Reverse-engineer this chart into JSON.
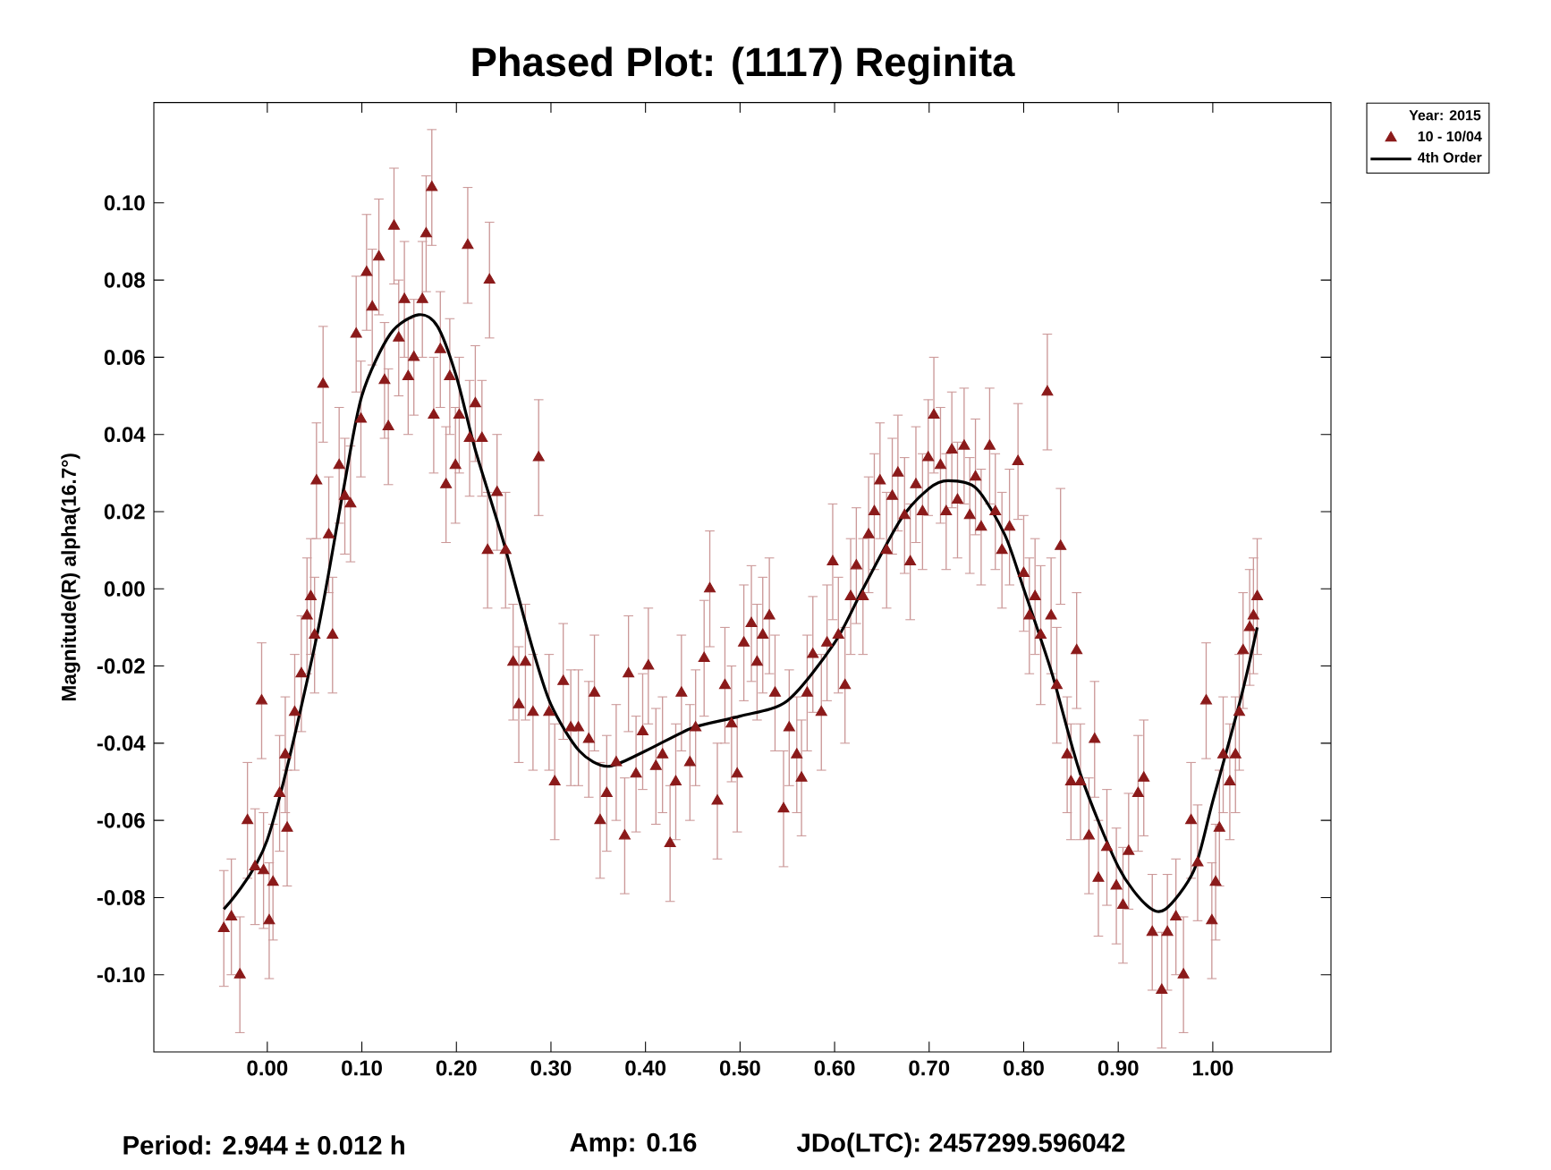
{
  "chart_data": {
    "type": "scatter",
    "title": "Phased Plot: (1117) Reginita",
    "ylabel": "Magnitude(R) alpha(16.7°)",
    "legend_title": "Year: 2015",
    "legend": "top right",
    "marker": "triangle",
    "grid": false,
    "xlim": [
      -0.12,
      1.125
    ],
    "ylim": [
      -0.12,
      0.126
    ],
    "xticks": [
      {
        "value": 0,
        "label": "0.00"
      },
      {
        "value": 0.1,
        "label": "0.10"
      },
      {
        "value": 0.2,
        "label": "0.20"
      },
      {
        "value": 0.3,
        "label": "0.30"
      },
      {
        "value": 0.4,
        "label": "0.40"
      },
      {
        "value": 0.5,
        "label": "0.50"
      },
      {
        "value": 0.6,
        "label": "0.60"
      },
      {
        "value": 0.7,
        "label": "0.70"
      },
      {
        "value": 0.8,
        "label": "0.80"
      },
      {
        "value": 0.9,
        "label": "0.90"
      },
      {
        "value": 1.0,
        "label": "1.00"
      }
    ],
    "yticks": [
      {
        "value": -0.1,
        "label": "-0.10"
      },
      {
        "value": -0.08,
        "label": "-0.08"
      },
      {
        "value": -0.06,
        "label": "-0.06"
      },
      {
        "value": -0.04,
        "label": "-0.04"
      },
      {
        "value": -0.02,
        "label": "-0.02"
      },
      {
        "value": 0,
        "label": "0.00"
      },
      {
        "value": 0.02,
        "label": "0.02"
      },
      {
        "value": 0.04,
        "label": "0.04"
      },
      {
        "value": 0.06,
        "label": "0.06"
      },
      {
        "value": 0.08,
        "label": "0.08"
      },
      {
        "value": 0.1,
        "label": "0.10"
      }
    ],
    "annotations": [
      "Period: 2.944 ± 0.012 h",
      "Amp: 0.16",
      "JDo(LTC): 2457299.596042"
    ],
    "series": [
      {
        "name": "10 - 10/04",
        "type": "scatter",
        "color": "#8b1a1a",
        "x": [
          -0.046,
          -0.038,
          -0.029,
          -0.021,
          -0.013,
          -0.006,
          -0.004,
          0.002,
          0.006,
          0.013,
          0.019,
          0.021,
          0.029,
          0.036,
          0.042,
          0.046,
          0.05,
          0.052,
          0.059,
          0.065,
          0.069,
          0.076,
          0.082,
          0.088,
          0.094,
          0.099,
          0.105,
          0.111,
          0.118,
          0.124,
          0.128,
          0.134,
          0.139,
          0.145,
          0.149,
          0.155,
          0.164,
          0.168,
          0.174,
          0.176,
          0.183,
          0.189,
          0.193,
          0.199,
          0.203,
          0.212,
          0.214,
          0.22,
          0.227,
          0.235,
          0.233,
          0.243,
          0.252,
          0.26,
          0.266,
          0.273,
          0.281,
          0.287,
          0.298,
          0.304,
          0.313,
          0.321,
          0.329,
          0.34,
          0.346,
          0.352,
          0.359,
          0.369,
          0.378,
          0.382,
          0.39,
          0.397,
          0.403,
          0.411,
          0.418,
          0.426,
          0.432,
          0.438,
          0.447,
          0.453,
          0.462,
          0.468,
          0.476,
          0.484,
          0.491,
          0.497,
          0.504,
          0.512,
          0.518,
          0.524,
          0.531,
          0.537,
          0.546,
          0.552,
          0.56,
          0.565,
          0.571,
          0.577,
          0.586,
          0.592,
          0.598,
          0.604,
          0.611,
          0.617,
          0.623,
          0.63,
          0.636,
          0.642,
          0.648,
          0.655,
          0.661,
          0.667,
          0.674,
          0.68,
          0.686,
          0.693,
          0.699,
          0.705,
          0.712,
          0.718,
          0.724,
          0.73,
          0.737,
          0.743,
          0.749,
          0.755,
          0.764,
          0.77,
          0.777,
          0.785,
          0.794,
          0.8,
          0.806,
          0.812,
          0.818,
          0.825,
          0.829,
          0.835,
          0.839,
          0.846,
          0.85,
          0.856,
          0.86,
          0.869,
          0.875,
          0.879,
          0.888,
          0.898,
          0.905,
          0.911,
          0.921,
          0.927,
          0.936,
          0.946,
          0.952,
          0.961,
          0.969,
          0.977,
          0.984,
          0.993,
          0.999,
          1.003,
          1.007,
          1.011,
          1.018,
          1.024,
          1.028,
          1.032,
          1.039,
          1.043,
          1.047
        ],
        "values": [
          -0.088,
          -0.085,
          -0.1,
          -0.06,
          -0.072,
          -0.029,
          -0.073,
          -0.086,
          -0.076,
          -0.053,
          -0.043,
          -0.062,
          -0.032,
          -0.022,
          -0.007,
          -0.002,
          -0.012,
          0.028,
          0.053,
          0.014,
          -0.012,
          0.032,
          0.024,
          0.022,
          0.066,
          0.044,
          0.082,
          0.073,
          0.086,
          0.054,
          0.042,
          0.094,
          0.065,
          0.075,
          0.055,
          0.06,
          0.075,
          0.092,
          0.104,
          0.045,
          0.062,
          0.027,
          0.055,
          0.032,
          0.045,
          0.089,
          0.039,
          0.048,
          0.039,
          0.08,
          0.01,
          0.025,
          0.01,
          -0.019,
          -0.03,
          -0.019,
          -0.032,
          0.034,
          -0.032,
          -0.05,
          -0.024,
          -0.036,
          -0.036,
          -0.039,
          -0.027,
          -0.06,
          -0.053,
          -0.045,
          -0.064,
          -0.022,
          -0.048,
          -0.037,
          -0.02,
          -0.046,
          -0.043,
          -0.066,
          -0.05,
          -0.027,
          -0.045,
          -0.036,
          -0.018,
          0.0,
          -0.055,
          -0.025,
          -0.035,
          -0.048,
          -0.014,
          -0.009,
          -0.019,
          -0.012,
          -0.007,
          -0.027,
          -0.057,
          -0.036,
          -0.043,
          -0.049,
          -0.027,
          -0.017,
          -0.032,
          -0.014,
          0.007,
          -0.012,
          -0.025,
          -0.002,
          0.006,
          -0.002,
          0.014,
          0.02,
          0.028,
          0.01,
          0.024,
          0.03,
          0.019,
          0.007,
          0.027,
          0.02,
          0.034,
          0.045,
          0.032,
          0.02,
          0.036,
          0.023,
          0.037,
          0.019,
          0.029,
          0.016,
          0.037,
          0.02,
          0.01,
          0.016,
          0.033,
          0.004,
          -0.007,
          -0.002,
          -0.012,
          0.051,
          -0.007,
          -0.025,
          0.011,
          -0.043,
          -0.05,
          -0.016,
          -0.05,
          -0.064,
          -0.039,
          -0.075,
          -0.067,
          -0.077,
          -0.082,
          -0.068,
          -0.053,
          -0.049,
          -0.089,
          -0.104,
          -0.089,
          -0.085,
          -0.1,
          -0.06,
          -0.071,
          -0.029,
          -0.086,
          -0.076,
          -0.062,
          -0.043,
          -0.05,
          -0.043,
          -0.032,
          -0.016,
          -0.01,
          -0.007,
          -0.002
        ],
        "errors": [
          0.015,
          0.015,
          0.015,
          0.015,
          0.015,
          0.015,
          0.015,
          0.015,
          0.015,
          0.015,
          0.015,
          0.015,
          0.015,
          0.015,
          0.015,
          0.015,
          0.015,
          0.015,
          0.015,
          0.015,
          0.015,
          0.015,
          0.015,
          0.015,
          0.015,
          0.015,
          0.015,
          0.015,
          0.015,
          0.015,
          0.015,
          0.015,
          0.015,
          0.015,
          0.015,
          0.015,
          0.015,
          0.015,
          0.015,
          0.015,
          0.015,
          0.015,
          0.015,
          0.015,
          0.015,
          0.015,
          0.015,
          0.015,
          0.015,
          0.015,
          0.015,
          0.015,
          0.015,
          0.015,
          0.015,
          0.015,
          0.015,
          0.015,
          0.015,
          0.015,
          0.015,
          0.015,
          0.015,
          0.015,
          0.015,
          0.015,
          0.015,
          0.015,
          0.015,
          0.015,
          0.015,
          0.015,
          0.015,
          0.015,
          0.015,
          0.015,
          0.015,
          0.015,
          0.015,
          0.015,
          0.015,
          0.015,
          0.015,
          0.015,
          0.015,
          0.015,
          0.015,
          0.015,
          0.015,
          0.015,
          0.015,
          0.015,
          0.015,
          0.015,
          0.015,
          0.015,
          0.015,
          0.015,
          0.015,
          0.015,
          0.015,
          0.015,
          0.015,
          0.015,
          0.015,
          0.015,
          0.015,
          0.015,
          0.015,
          0.015,
          0.015,
          0.015,
          0.015,
          0.015,
          0.015,
          0.015,
          0.015,
          0.015,
          0.015,
          0.015,
          0.015,
          0.015,
          0.015,
          0.015,
          0.015,
          0.015,
          0.015,
          0.015,
          0.015,
          0.015,
          0.015,
          0.015,
          0.015,
          0.015,
          0.018,
          0.015,
          0.015,
          0.015,
          0.015,
          0.015,
          0.015,
          0.015,
          0.015,
          0.015,
          0.015,
          0.015,
          0.015,
          0.015,
          0.015,
          0.015,
          0.015,
          0.015,
          0.015,
          0.015,
          0.015,
          0.015,
          0.015,
          0.015,
          0.015,
          0.015,
          0.015,
          0.015,
          0.015,
          0.015,
          0.015,
          0.015,
          0.015,
          0.015,
          0.015,
          0.015,
          0.015
        ]
      },
      {
        "name": "4th Order",
        "type": "line",
        "color": "#000000",
        "marker": "none",
        "x": [
          -0.046,
          0.0,
          0.05,
          0.08,
          0.1,
          0.13,
          0.16,
          0.18,
          0.2,
          0.22,
          0.25,
          0.28,
          0.3,
          0.33,
          0.36,
          0.4,
          0.45,
          0.5,
          0.55,
          0.6,
          0.63,
          0.67,
          0.7,
          0.72,
          0.75,
          0.78,
          0.8,
          0.83,
          0.86,
          0.9,
          0.93,
          0.95,
          0.98,
          1.0,
          1.03,
          1.047
        ],
        "values": [
          -0.083,
          -0.065,
          -0.015,
          0.025,
          0.05,
          0.066,
          0.071,
          0.068,
          0.055,
          0.036,
          0.012,
          -0.015,
          -0.03,
          -0.042,
          -0.046,
          -0.042,
          -0.036,
          -0.033,
          -0.029,
          -0.014,
          0.0,
          0.018,
          0.026,
          0.028,
          0.026,
          0.014,
          0.0,
          -0.022,
          -0.048,
          -0.072,
          -0.082,
          -0.083,
          -0.073,
          -0.055,
          -0.028,
          -0.01
        ]
      }
    ]
  }
}
